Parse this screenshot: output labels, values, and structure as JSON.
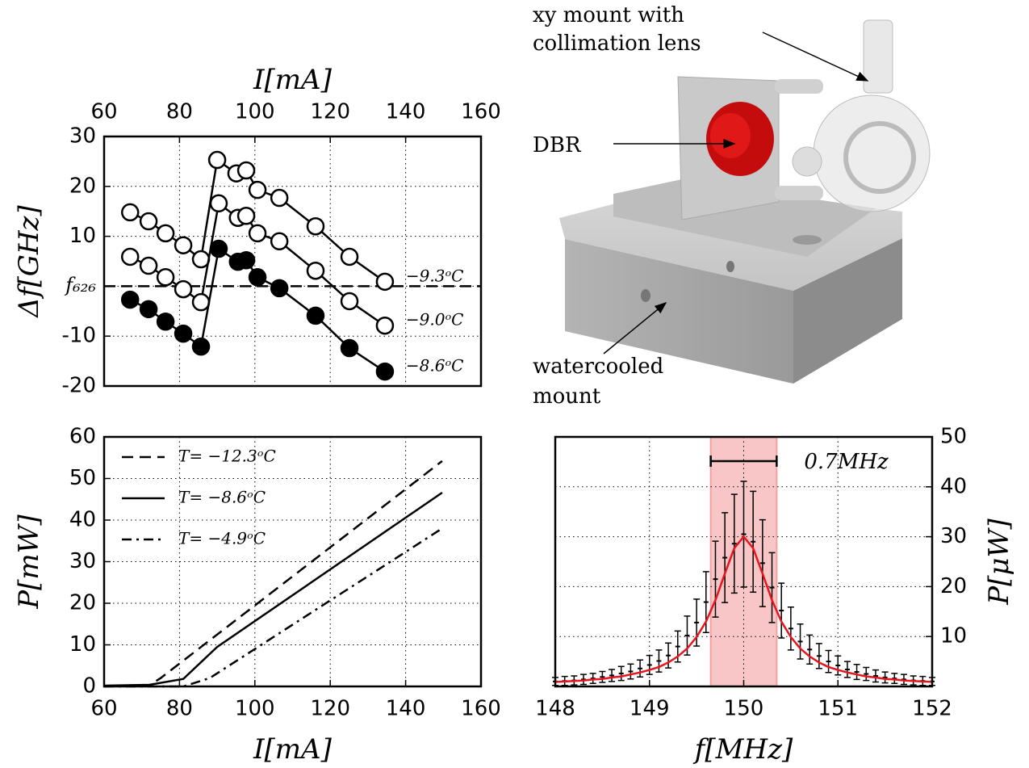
{
  "chart_data": [
    {
      "type": "line",
      "xlabel": "I[mA]",
      "ylabel": "Δf[GHz]",
      "xlim": [
        60,
        160
      ],
      "xticks": [
        60,
        80,
        100,
        120,
        140,
        160
      ],
      "ylim": [
        -20,
        30
      ],
      "yticks": [
        30,
        20,
        10,
        {
          "value": 0,
          "label": "f₆₂₆"
        },
        -10,
        -20
      ],
      "grid": true,
      "hline": 0,
      "series": [
        {
          "name": "−9.3ᵒC",
          "color": "#000000",
          "marker": "open",
          "x": [
            66.9,
            71.8,
            76.3,
            81.0,
            85.7,
            90.0,
            95.1,
            97.7,
            100.7,
            106.5,
            116.1,
            125.1,
            134.5
          ],
          "values": [
            14.8,
            13.0,
            10.6,
            8.2,
            5.4,
            25.3,
            22.6,
            23.2,
            19.3,
            17.7,
            12.0,
            5.9,
            0.9
          ]
        },
        {
          "name": "−9.0ᵒC",
          "color": "#000000",
          "marker": "open",
          "x": [
            66.9,
            71.8,
            76.3,
            81.0,
            85.7,
            90.4,
            95.5,
            97.7,
            100.7,
            106.5,
            116.1,
            125.1,
            134.5
          ],
          "values": [
            5.9,
            4.1,
            1.8,
            -0.6,
            -3.2,
            16.6,
            13.7,
            14.1,
            10.6,
            9.0,
            3.1,
            -3.0,
            -7.9
          ]
        },
        {
          "name": "−8.6ᵒC",
          "color": "#000000",
          "marker": "filled",
          "x": [
            66.9,
            71.8,
            76.3,
            81.0,
            85.7,
            90.4,
            95.5,
            97.7,
            100.7,
            106.5,
            116.1,
            125.1,
            134.5
          ],
          "values": [
            -2.7,
            -4.6,
            -7.1,
            -9.5,
            -12.1,
            7.5,
            4.9,
            5.2,
            1.8,
            -0.4,
            -5.9,
            -12.4,
            -17.1
          ]
        }
      ]
    },
    {
      "type": "line",
      "xlabel": "I[mA]",
      "ylabel": "P[mW]",
      "xlim": [
        60,
        160
      ],
      "xticks": [
        60,
        80,
        100,
        120,
        140,
        160
      ],
      "ylim": [
        0,
        60
      ],
      "yticks": [
        0,
        10,
        20,
        30,
        40,
        50,
        60
      ],
      "grid": true,
      "legend": "upper left",
      "series": [
        {
          "name": "T= −12.3ᵒC",
          "color": "#000000",
          "dash": "dashed",
          "x": [
            60,
            72,
            75,
            149.7
          ],
          "values": [
            0,
            0.3,
            2,
            54.2
          ]
        },
        {
          "name": "T= −8.6ᵒC",
          "color": "#000000",
          "dash": "solid",
          "x": [
            60,
            72,
            81,
            90,
            149.7
          ],
          "values": [
            0.2,
            0.4,
            1.8,
            9.5,
            46.6
          ]
        },
        {
          "name": "T= −4.9ᵒC",
          "color": "#000000",
          "dash": "dashdot",
          "x": [
            60,
            81,
            88,
            149.7
          ],
          "values": [
            0,
            0,
            2,
            38
          ]
        }
      ]
    },
    {
      "type": "errorbar",
      "xlabel": "f[MHz]",
      "ylabel": "P[μW]",
      "y_axis_side": "right",
      "xlim": [
        148,
        152
      ],
      "xticks": [
        148,
        149,
        150,
        151,
        152
      ],
      "ylim": [
        0,
        50
      ],
      "yticks": [
        10,
        20,
        30,
        40,
        50
      ],
      "grid": true,
      "band": [
        149.65,
        150.35
      ],
      "band_color": "#f4a0a0",
      "band_label": "0.7MHz",
      "x": [
        148.0,
        148.1,
        148.2,
        148.3,
        148.4,
        148.5,
        148.6,
        148.7,
        148.8,
        148.9,
        149.0,
        149.1,
        149.2,
        149.3,
        149.4,
        149.5,
        149.6,
        149.7,
        149.8,
        149.9,
        150.0,
        150.1,
        150.2,
        150.3,
        150.4,
        150.5,
        150.6,
        150.7,
        150.8,
        150.9,
        151.0,
        151.1,
        151.2,
        151.3,
        151.4,
        151.5,
        151.6,
        151.7,
        151.8,
        151.9,
        152.0
      ],
      "series": [
        {
          "color": "#000000",
          "values": [
            1.0,
            1.1,
            1.2,
            1.4,
            1.6,
            1.9,
            2.2,
            2.6,
            3.0,
            3.6,
            4.3,
            5.1,
            6.2,
            8.0,
            10.2,
            12.8,
            16.9,
            21.5,
            25.8,
            28.6,
            30.5,
            29.0,
            24.7,
            19.8,
            15.2,
            11.6,
            9.0,
            7.4,
            6.1,
            5.0,
            4.2,
            3.4,
            2.9,
            2.5,
            2.1,
            1.8,
            1.6,
            1.4,
            1.2,
            1.1,
            1.0
          ],
          "errors": [
            0.8,
            0.9,
            0.9,
            1.0,
            1.0,
            1.1,
            1.2,
            1.4,
            1.5,
            1.7,
            1.9,
            2.2,
            2.5,
            3.1,
            3.9,
            4.7,
            6.1,
            7.6,
            9.0,
            9.9,
            10.6,
            10.1,
            8.7,
            7.0,
            5.5,
            4.3,
            3.5,
            2.9,
            2.5,
            2.2,
            1.9,
            1.6,
            1.5,
            1.3,
            1.2,
            1.1,
            1.0,
            1.0,
            0.9,
            0.9,
            0.8
          ]
        },
        {
          "color": "#e8141e",
          "values": [
            0.9,
            1.0,
            1.1,
            1.2,
            1.4,
            1.5,
            1.8,
            2.0,
            2.4,
            2.8,
            3.3,
            3.9,
            4.8,
            6.0,
            7.6,
            9.9,
            13.0,
            17.3,
            22.6,
            27.7,
            30,
            27.7,
            22.6,
            17.3,
            13.0,
            9.9,
            7.6,
            6.0,
            4.8,
            3.9,
            3.3,
            2.8,
            2.4,
            2.0,
            1.8,
            1.5,
            1.4,
            1.2,
            1.1,
            1.0,
            0.9
          ]
        }
      ]
    }
  ],
  "figure": {
    "labels": [
      "xy mount with",
      "collimation lens",
      "DBR",
      "watercooled",
      "mount"
    ]
  }
}
